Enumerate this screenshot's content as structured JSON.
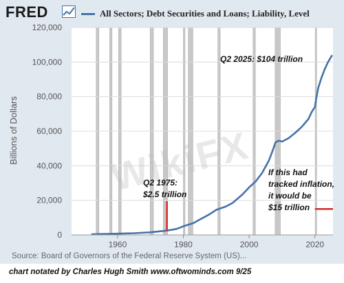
{
  "header": {
    "logo": "FRED",
    "legend_label": "All Sectors; Debt Securities and Loans; Liability, Level"
  },
  "colors": {
    "series": "#4572a7",
    "recession": "#c8c8c8",
    "marker": "#d62728",
    "panel": "#e1e9f0"
  },
  "source": "Source: Board of Governors of the Federal Reserve System (US)...",
  "footer": "chart notated by Charles Hugh Smith     www.oftwominds.com     9/25",
  "watermark": "WikiFX",
  "chart_data": {
    "type": "line",
    "title": "",
    "xlabel": "",
    "ylabel": "Billions of Dollars",
    "xlim": [
      1946,
      2025.5
    ],
    "ylim": [
      0,
      120000
    ],
    "x_ticks": [
      "1960",
      "1980",
      "2000",
      "2020"
    ],
    "y_ticks": [
      "0",
      "20,000",
      "40,000",
      "60,000",
      "80,000",
      "100,000",
      "120,000"
    ],
    "grid": true,
    "legend": "top",
    "series": [
      {
        "name": "All Sectors; Debt Securities and Loans; Liability, Level",
        "x": [
          1952,
          1955,
          1960,
          1965,
          1970,
          1975,
          1978,
          1980,
          1983,
          1985,
          1988,
          1990,
          1993,
          1995,
          1998,
          2000,
          2002,
          2004,
          2006,
          2007,
          2008,
          2009,
          2010,
          2012,
          2014,
          2016,
          2018,
          2019,
          2020,
          2020.5,
          2021,
          2022,
          2023,
          2024,
          2025.25
        ],
        "values": [
          400,
          500,
          700,
          1000,
          1500,
          2500,
          3500,
          5000,
          6800,
          8900,
          12000,
          14500,
          16500,
          18500,
          23500,
          27500,
          31000,
          36000,
          43000,
          48000,
          53500,
          54500,
          54000,
          56000,
          59000,
          62500,
          67000,
          71000,
          74000,
          80000,
          85000,
          91000,
          96000,
          100000,
          104000
        ]
      }
    ],
    "recessions": [
      [
        1953.5,
        1954.3
      ],
      [
        1957.6,
        1958.3
      ],
      [
        1960.3,
        1961.1
      ],
      [
        1969.9,
        1970.9
      ],
      [
        1973.9,
        1975.2
      ],
      [
        1980.0,
        1980.5
      ],
      [
        1981.5,
        1982.9
      ],
      [
        1990.5,
        1991.2
      ],
      [
        2001.2,
        2001.9
      ],
      [
        2007.9,
        2009.5
      ],
      [
        2020.1,
        2020.4
      ]
    ],
    "annotations": [
      {
        "id": "q2-2025",
        "text": "Q2 2025: $104 trillion"
      },
      {
        "id": "q2-1975",
        "text": "Q2 1975:\n$2.5 trillion",
        "x": 1975,
        "value": 2500
      },
      {
        "id": "inflation",
        "text": "If this had\ntracked inflation,\nit would be\n$15 trillion",
        "x_range": [
          2020,
          2025.5
        ],
        "value": 15000
      }
    ]
  }
}
